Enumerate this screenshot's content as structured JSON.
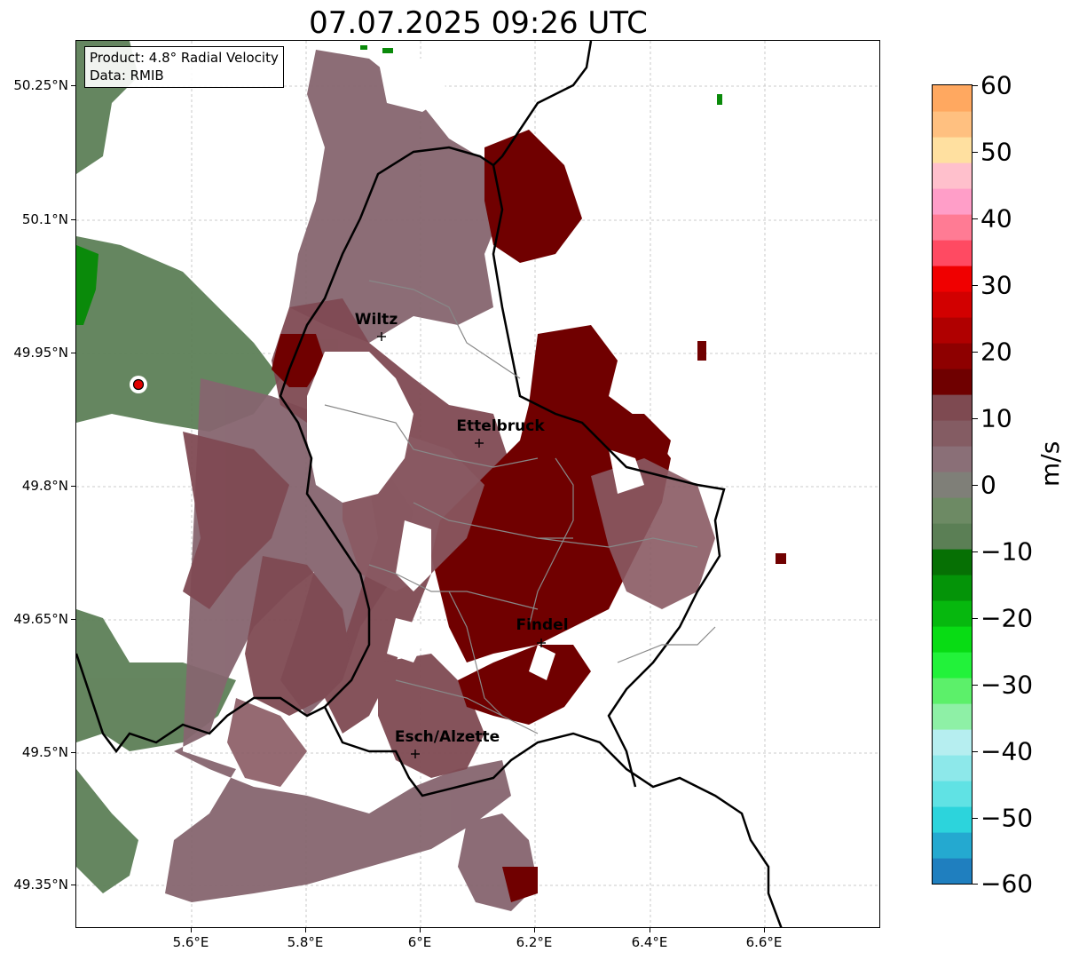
{
  "title": "07.07.2025 09:26 UTC",
  "info": {
    "product": "Product: 4.8° Radial Velocity",
    "data": "Data: RMIB"
  },
  "axes": {
    "lat_labels": [
      "50.25°N",
      "50.1°N",
      "49.95°N",
      "49.8°N",
      "49.65°N",
      "49.5°N",
      "49.35°N"
    ],
    "lon_labels": [
      "5.6°E",
      "5.8°E",
      "6°E",
      "6.2°E",
      "6.4°E",
      "6.6°E"
    ]
  },
  "cities": [
    {
      "name": "Wiltz"
    },
    {
      "name": "Ettelbruck"
    },
    {
      "name": "Findel"
    },
    {
      "name": "Esch/Alzette"
    }
  ],
  "colorbar": {
    "unit": "m/s",
    "labels": [
      "60",
      "50",
      "40",
      "30",
      "20",
      "10",
      "0",
      "−10",
      "−20",
      "−30",
      "−40",
      "−50",
      "−60"
    ],
    "min": -60,
    "max": 60,
    "colors": [
      "#1f7fbf",
      "#24a9d0",
      "#2cd4dc",
      "#60e2e4",
      "#8de8ea",
      "#b6eef0",
      "#8ef0a6",
      "#5cf06a",
      "#22f23a",
      "#08dc14",
      "#06b80e",
      "#049408",
      "#067004",
      "#5b7f55",
      "#6d8a64",
      "#7f7f78",
      "#8a6f77",
      "#845c63",
      "#7e4a51",
      "#6f0000",
      "#8e0000",
      "#b00000",
      "#d20000",
      "#f00000",
      "#ff4a62",
      "#ff7b94",
      "#ff9ec8",
      "#ffc0cc",
      "#ffe0a0",
      "#ffc080",
      "#ffa860"
    ],
    "map_colors": {
      "receding_strong": "#700000",
      "receding_weak": "#7f4a53",
      "near_zero": "#86656f",
      "approaching_weak": "#5d7f57",
      "approaching_strong": "#0a8a0a"
    }
  }
}
